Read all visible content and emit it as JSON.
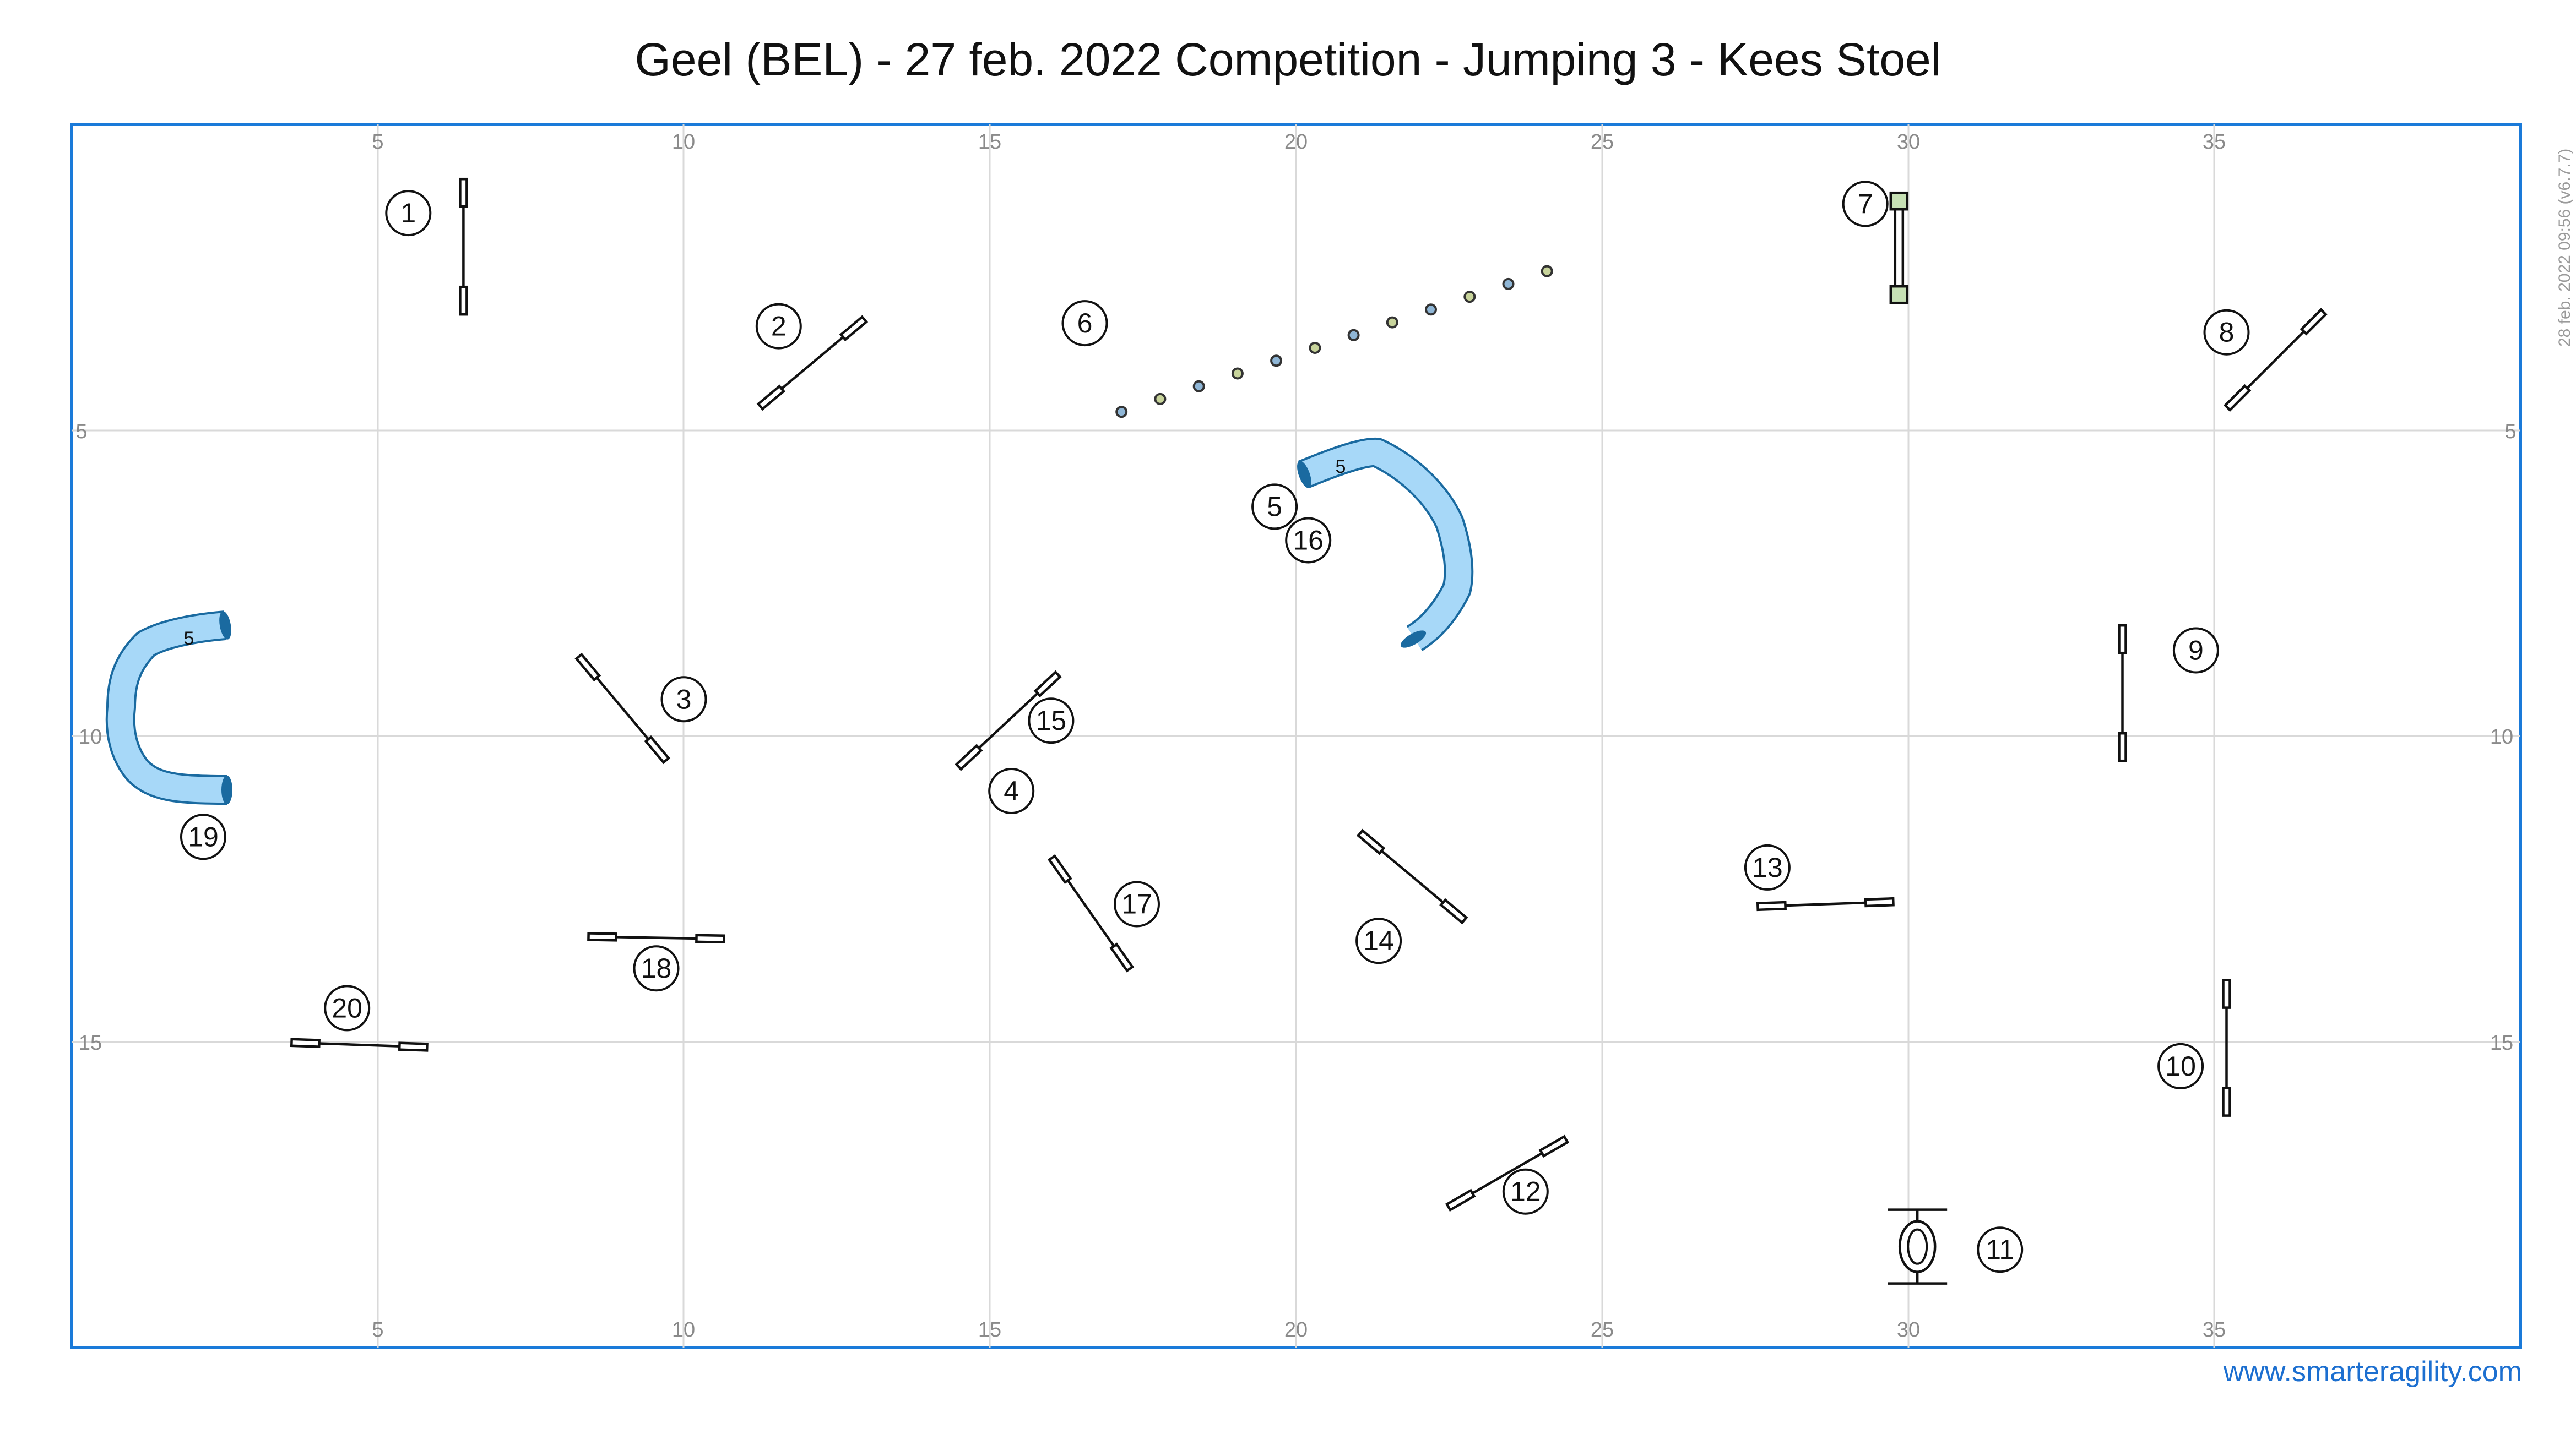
{
  "title": "Geel (BEL) - 27 feb. 2022 Competition - Jumping 3 - Kees Stoel",
  "side_stamp": "28 feb. 2022 09:56  (v6.7.7)",
  "website": "www.smarteragility.com",
  "colors": {
    "border": "#1a7ad9",
    "grid": "#d9d9d9",
    "tunnel_fill": "#a7d8f8",
    "tunnel_edge": "#1a6aa0",
    "table_fill": "#c6e0b4",
    "weave_blue": "#8fb6d6",
    "weave_green": "#c8d49b",
    "website": "#1c6fd0"
  },
  "field": {
    "width_m": 40,
    "height_m": 20,
    "x_ticks": [
      "5",
      "10",
      "15",
      "20",
      "25",
      "30",
      "35"
    ],
    "y_ticks": [
      "5",
      "10",
      "15"
    ]
  },
  "obstacles": [
    {
      "num": "1",
      "type": "jump",
      "cx": 6.4,
      "cy": 2.0,
      "angle": 90
    },
    {
      "num": "2",
      "type": "jump",
      "cx": 12.1,
      "cy": 3.9,
      "angle": -40
    },
    {
      "num": "3",
      "type": "jump",
      "cx": 9.0,
      "cy": 9.55,
      "angle": 50
    },
    {
      "num": "4",
      "type": "jump",
      "cx": 15.3,
      "cy": 9.75,
      "angle": -43
    },
    {
      "num": "5",
      "type": "tunnel",
      "length_label": "5"
    },
    {
      "num": "6",
      "type": "weave",
      "count": 12
    },
    {
      "num": "7",
      "type": "table",
      "cx": 29.85,
      "cy": 2.0
    },
    {
      "num": "8",
      "type": "jump",
      "cx": 36.0,
      "cy": 3.85,
      "angle": -45
    },
    {
      "num": "9",
      "type": "jump",
      "cx": 33.5,
      "cy": 9.3,
      "angle": 90
    },
    {
      "num": "10",
      "type": "jump",
      "cx": 35.2,
      "cy": 15.1,
      "angle": 90
    },
    {
      "num": "11",
      "type": "tyre",
      "cx": 30.15,
      "cy": 18.35
    },
    {
      "num": "12",
      "type": "jump",
      "cx": 23.45,
      "cy": 17.15,
      "angle": -30
    },
    {
      "num": "13",
      "type": "jump",
      "cx": 28.65,
      "cy": 12.75,
      "angle": -2
    },
    {
      "num": "14",
      "type": "jump",
      "cx": 21.9,
      "cy": 12.3,
      "angle": 40
    },
    {
      "num": "15",
      "type": "jump",
      "same_as": "4"
    },
    {
      "num": "16",
      "type": "tunnel",
      "same_as": "5"
    },
    {
      "num": "17",
      "type": "jump",
      "cx": 16.65,
      "cy": 12.9,
      "angle": 55
    },
    {
      "num": "18",
      "type": "jump",
      "cx": 9.55,
      "cy": 13.3,
      "angle": 1
    },
    {
      "num": "19",
      "type": "tunnel",
      "length_label": "5"
    },
    {
      "num": "20",
      "type": "jump",
      "cx": 4.7,
      "cy": 15.05,
      "angle": 2
    }
  ],
  "number_labels": [
    {
      "text": "1",
      "x": 5.5,
      "y": 1.45
    },
    {
      "text": "2",
      "x": 11.55,
      "y": 3.3
    },
    {
      "text": "3",
      "x": 10.0,
      "y": 9.4
    },
    {
      "text": "4",
      "x": 15.35,
      "y": 10.9
    },
    {
      "text": "5",
      "x": 19.65,
      "y": 6.25
    },
    {
      "text": "6",
      "x": 16.55,
      "y": 3.25
    },
    {
      "text": "7",
      "x": 29.3,
      "y": 1.3
    },
    {
      "text": "8",
      "x": 35.2,
      "y": 3.4
    },
    {
      "text": "9",
      "x": 34.7,
      "y": 8.6
    },
    {
      "text": "10",
      "x": 34.45,
      "y": 15.4
    },
    {
      "text": "11",
      "x": 31.5,
      "y": 18.4
    },
    {
      "text": "12",
      "x": 23.75,
      "y": 17.45
    },
    {
      "text": "13",
      "x": 27.7,
      "y": 12.15
    },
    {
      "text": "14",
      "x": 21.35,
      "y": 13.35
    },
    {
      "text": "15",
      "x": 16.0,
      "y": 9.75
    },
    {
      "text": "16",
      "x": 20.2,
      "y": 6.8
    },
    {
      "text": "17",
      "x": 17.4,
      "y": 12.75
    },
    {
      "text": "18",
      "x": 9.55,
      "y": 13.8
    },
    {
      "text": "19",
      "x": 2.15,
      "y": 11.65
    },
    {
      "text": "20",
      "x": 4.5,
      "y": 14.45
    }
  ]
}
